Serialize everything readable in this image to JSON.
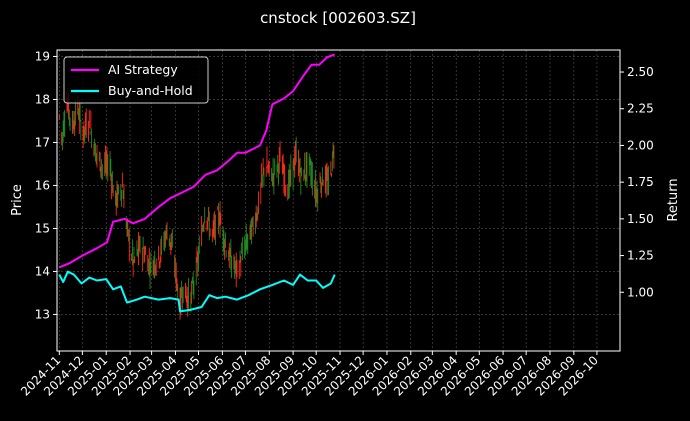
{
  "chart_data": {
    "type": "line",
    "title": "cnstock [002603.SZ]",
    "xlabel": "",
    "ylabel_left": "Price",
    "ylabel_right": "Return",
    "x_ticks": [
      "2024-11",
      "2024-12",
      "2025-01",
      "2025-02",
      "2025-03",
      "2025-04",
      "2025-05",
      "2025-06",
      "2025-07",
      "2025-08",
      "2025-09",
      "2025-10",
      "2025-11",
      "2025-12",
      "2026-01",
      "2026-02",
      "2026-03",
      "2026-04",
      "2026-05",
      "2026-06",
      "2026-07",
      "2026-08",
      "2026-09",
      "2026-10"
    ],
    "x_range": [
      "2024-10-29",
      "2026-10-31"
    ],
    "y_left_ticks": [
      13,
      14,
      15,
      16,
      17,
      18,
      19
    ],
    "y_left_range": [
      12.15,
      19.15
    ],
    "y_right_ticks": [
      "1.00",
      "1.25",
      "1.50",
      "1.75",
      "2.00",
      "2.25",
      "2.50"
    ],
    "y_right_range": [
      0.6,
      2.65
    ],
    "grid": true,
    "legend_position": "top-left",
    "colors": {
      "ai": "#ff00ff",
      "hold": "#00ffff",
      "up": "#ff2a1a",
      "down": "#1f8f1f",
      "grid": "#555555",
      "axes": "#ffffff"
    },
    "series": [
      {
        "name": "AI Strategy",
        "points": [
          [
            "2024-11-01",
            1.17
          ],
          [
            "2024-11-15",
            1.2
          ],
          [
            "2024-12-01",
            1.25
          ],
          [
            "2024-12-20",
            1.3
          ],
          [
            "2025-01-02",
            1.34
          ],
          [
            "2025-01-10",
            1.48
          ],
          [
            "2025-01-25",
            1.5
          ],
          [
            "2025-02-05",
            1.47
          ],
          [
            "2025-02-20",
            1.5
          ],
          [
            "2025-03-10",
            1.58
          ],
          [
            "2025-03-25",
            1.64
          ],
          [
            "2025-04-10",
            1.68
          ],
          [
            "2025-04-25",
            1.72
          ],
          [
            "2025-05-10",
            1.8
          ],
          [
            "2025-05-25",
            1.83
          ],
          [
            "2025-06-10",
            1.9
          ],
          [
            "2025-06-20",
            1.95
          ],
          [
            "2025-07-01",
            1.95
          ],
          [
            "2025-07-20",
            2.0
          ],
          [
            "2025-07-28",
            2.1
          ],
          [
            "2025-08-05",
            2.28
          ],
          [
            "2025-08-20",
            2.32
          ],
          [
            "2025-09-01",
            2.37
          ],
          [
            "2025-09-15",
            2.48
          ],
          [
            "2025-09-25",
            2.55
          ],
          [
            "2025-10-05",
            2.55
          ],
          [
            "2025-10-15",
            2.6
          ],
          [
            "2025-10-25",
            2.62
          ]
        ]
      },
      {
        "name": "Buy-and-Hold",
        "points": [
          [
            "2024-11-01",
            1.12
          ],
          [
            "2024-11-06",
            1.07
          ],
          [
            "2024-11-12",
            1.14
          ],
          [
            "2024-11-20",
            1.12
          ],
          [
            "2024-11-30",
            1.06
          ],
          [
            "2024-12-10",
            1.1
          ],
          [
            "2024-12-20",
            1.08
          ],
          [
            "2025-01-01",
            1.09
          ],
          [
            "2025-01-10",
            1.02
          ],
          [
            "2025-01-20",
            1.04
          ],
          [
            "2025-01-28",
            0.93
          ],
          [
            "2025-02-10",
            0.95
          ],
          [
            "2025-02-20",
            0.97
          ],
          [
            "2025-03-10",
            0.95
          ],
          [
            "2025-03-25",
            0.96
          ],
          [
            "2025-04-05",
            0.95
          ],
          [
            "2025-04-07",
            0.87
          ],
          [
            "2025-04-20",
            0.88
          ],
          [
            "2025-05-05",
            0.9
          ],
          [
            "2025-05-15",
            0.98
          ],
          [
            "2025-05-25",
            0.96
          ],
          [
            "2025-06-05",
            0.97
          ],
          [
            "2025-06-20",
            0.95
          ],
          [
            "2025-07-05",
            0.98
          ],
          [
            "2025-07-20",
            1.02
          ],
          [
            "2025-08-05",
            1.05
          ],
          [
            "2025-08-20",
            1.08
          ],
          [
            "2025-09-01",
            1.05
          ],
          [
            "2025-09-10",
            1.12
          ],
          [
            "2025-09-20",
            1.08
          ],
          [
            "2025-10-01",
            1.08
          ],
          [
            "2025-10-10",
            1.03
          ],
          [
            "2025-10-20",
            1.06
          ],
          [
            "2025-10-25",
            1.12
          ]
        ]
      },
      {
        "name": "Price",
        "points": [
          [
            "2024-11-01",
            17.6
          ],
          [
            "2024-11-05",
            17.1
          ],
          [
            "2024-11-10",
            18.0
          ],
          [
            "2024-11-18",
            17.4
          ],
          [
            "2024-11-25",
            17.8
          ],
          [
            "2024-12-01",
            17.2
          ],
          [
            "2024-12-10",
            17.5
          ],
          [
            "2024-12-18",
            16.8
          ],
          [
            "2024-12-28",
            16.4
          ],
          [
            "2025-01-06",
            16.5
          ],
          [
            "2025-01-12",
            15.6
          ],
          [
            "2025-01-22",
            16.0
          ],
          [
            "2025-01-28",
            15.0
          ],
          [
            "2025-02-05",
            14.2
          ],
          [
            "2025-02-15",
            14.6
          ],
          [
            "2025-02-28",
            14.1
          ],
          [
            "2025-03-12",
            14.4
          ],
          [
            "2025-03-22",
            15.0
          ],
          [
            "2025-03-30",
            14.3
          ],
          [
            "2025-04-07",
            13.2
          ],
          [
            "2025-04-10",
            13.6
          ],
          [
            "2025-04-20",
            13.3
          ],
          [
            "2025-04-30",
            14.2
          ],
          [
            "2025-05-10",
            15.5
          ],
          [
            "2025-05-18",
            14.8
          ],
          [
            "2025-05-28",
            15.3
          ],
          [
            "2025-06-08",
            14.4
          ],
          [
            "2025-06-20",
            14.0
          ],
          [
            "2025-07-01",
            14.6
          ],
          [
            "2025-07-10",
            15.0
          ],
          [
            "2025-07-18",
            15.5
          ],
          [
            "2025-07-26",
            16.5
          ],
          [
            "2025-08-05",
            16.2
          ],
          [
            "2025-08-15",
            16.6
          ],
          [
            "2025-08-25",
            15.9
          ],
          [
            "2025-09-05",
            16.7
          ],
          [
            "2025-09-12",
            16.2
          ],
          [
            "2025-09-22",
            16.5
          ],
          [
            "2025-10-01",
            15.8
          ],
          [
            "2025-10-10",
            16.2
          ],
          [
            "2025-10-18",
            16.0
          ],
          [
            "2025-10-25",
            17.0
          ]
        ]
      }
    ]
  }
}
